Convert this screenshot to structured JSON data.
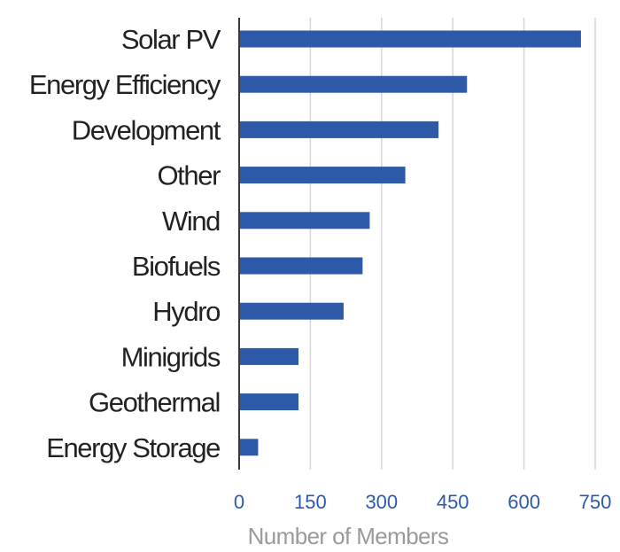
{
  "chart_data": {
    "type": "bar",
    "orientation": "horizontal",
    "categories": [
      "Solar PV",
      "Energy Efficiency",
      "Development",
      "Other",
      "Wind",
      "Biofuels",
      "Hydro",
      "Minigrids",
      "Geothermal",
      "Energy Storage"
    ],
    "values": [
      720,
      480,
      420,
      350,
      275,
      260,
      220,
      125,
      125,
      40
    ],
    "title": "",
    "xlabel": "Number of Members",
    "ylabel": "",
    "xlim": [
      0,
      750
    ],
    "xticks": [
      0,
      150,
      300,
      450,
      600,
      750
    ],
    "xtick_labels": [
      "0",
      "150",
      "300",
      "450",
      "600",
      "750"
    ],
    "grid": "vertical",
    "legend": "none",
    "colors": {
      "bar": "#2d5aa8",
      "tick_labels": "#2d5aa8",
      "axis_title": "#9a9a9a",
      "category_labels": "#222222",
      "grid": "#d6d6d6"
    }
  }
}
